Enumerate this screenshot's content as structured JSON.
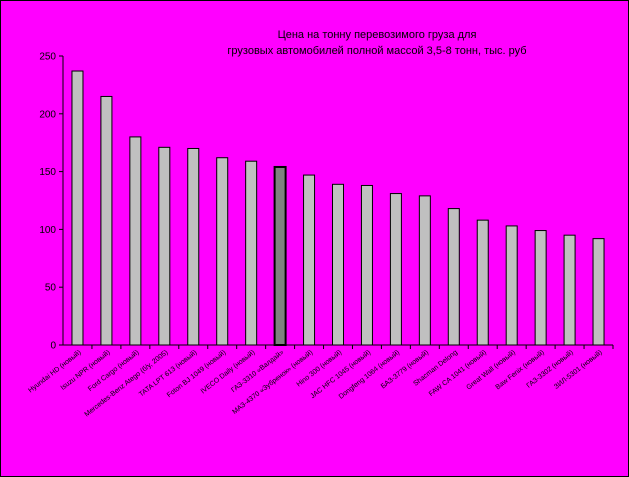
{
  "colors": {
    "background": "#ff00ff",
    "bar_fill": "#c0c0c0",
    "highlight_fill": "#808080",
    "axis": "#000000"
  },
  "chart_data": {
    "type": "bar",
    "title": "Цена на тонну перевозимого груза для грузовых автомобилей полной массой 3,5-8 тонн, тыс. руб",
    "title_lines": [
      "Цена на тонну перевозимого груза для",
      "грузовых автомобилей полной массой 3,5-8 тонн, тыс. руб"
    ],
    "xlabel": "",
    "ylabel": "",
    "ylim": [
      0,
      250
    ],
    "yticks": [
      0,
      50,
      100,
      150,
      200,
      250
    ],
    "grid": false,
    "legend": "none",
    "categories": [
      "Hyundai HD (новый)",
      "Isuzu NPR (новый)",
      "Ford Cargo (новый)",
      "Mercedes-Benz Atego (б/у, 2005)",
      "TATA LPT 613 (новый)",
      "Foton BJ 1049 (новый)",
      "IVECO Daily (новый)",
      "ГАЗ-3310 «Валдай»",
      "МАЗ-4370 «Зубренок» (новый)",
      "Hino 300 (новый)",
      "JAC HFC 1045 (новый)",
      "Dongfeng 1064 (новый)",
      "БАЗ-3779 (новый)",
      "Shacman Delong",
      "FAW CA 1041 (новый)",
      "Great Wall (новый)",
      "Baw Fenix (новый)",
      "ГАЗ-3302 (новый)",
      "ЗИЛ-5301 (новый)"
    ],
    "values": [
      237,
      215,
      180,
      171,
      170,
      162,
      159,
      154,
      147,
      139,
      138,
      131,
      129,
      118,
      108,
      103,
      99,
      95,
      92
    ],
    "highlight_index": 7
  }
}
